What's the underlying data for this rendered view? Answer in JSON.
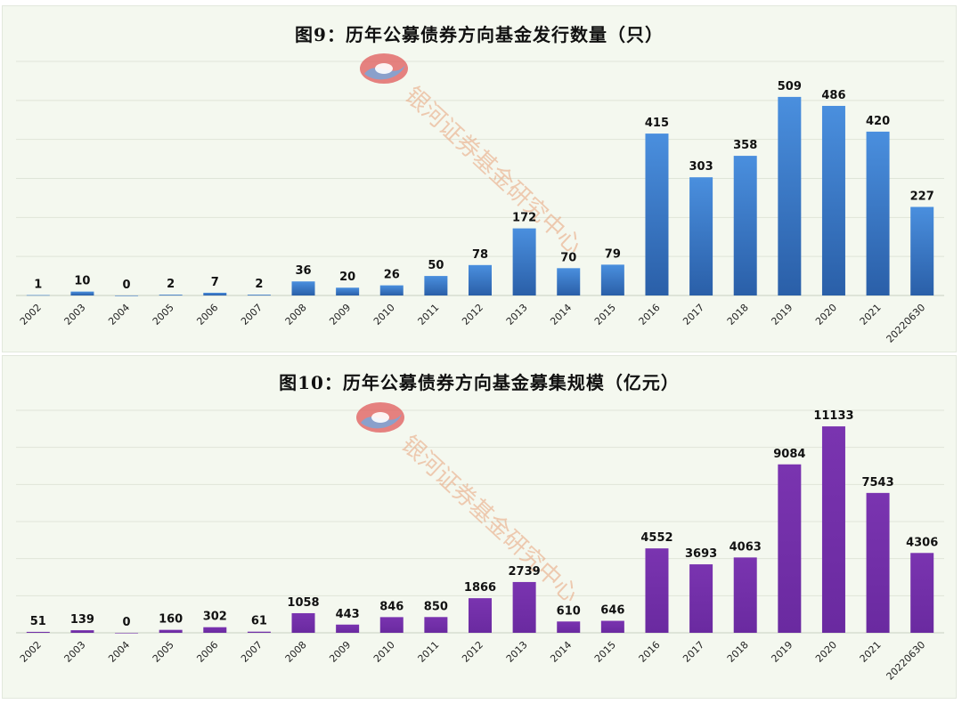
{
  "chart_data": [
    {
      "type": "bar",
      "title": "图9：历年公募债券方向基金发行数量（只）",
      "categories": [
        "2002",
        "2003",
        "2004",
        "2005",
        "2006",
        "2007",
        "2008",
        "2009",
        "2010",
        "2011",
        "2012",
        "2013",
        "2014",
        "2015",
        "2016",
        "2017",
        "2018",
        "2019",
        "2020",
        "2021",
        "20220630"
      ],
      "values": [
        1,
        10,
        0,
        2,
        7,
        2,
        36,
        20,
        26,
        50,
        78,
        172,
        70,
        79,
        415,
        303,
        358,
        509,
        486,
        420,
        227
      ],
      "ylim": [
        0,
        600
      ],
      "grid": true,
      "color_top": "#4a8fde",
      "color_bottom": "#2a5fa8"
    },
    {
      "type": "bar",
      "title": "图10：历年公募债券方向基金募集规模（亿元）",
      "categories": [
        "2002",
        "2003",
        "2004",
        "2005",
        "2006",
        "2007",
        "2008",
        "2009",
        "2010",
        "2011",
        "2012",
        "2013",
        "2014",
        "2015",
        "2016",
        "2017",
        "2018",
        "2019",
        "2020",
        "2021",
        "20220630"
      ],
      "values": [
        51,
        139,
        0,
        160,
        302,
        61,
        1058,
        443,
        846,
        850,
        1866,
        2739,
        610,
        646,
        4552,
        3693,
        4063,
        9084,
        11133,
        7543,
        4306
      ],
      "ylim": [
        0,
        12000
      ],
      "grid": true,
      "color_top": "#7a34b0",
      "color_bottom": "#6a2aa0"
    }
  ],
  "watermark": {
    "text": "银河证券基金研究中心",
    "logo_colors": [
      "#e05a5a",
      "#7aa6d8"
    ]
  }
}
